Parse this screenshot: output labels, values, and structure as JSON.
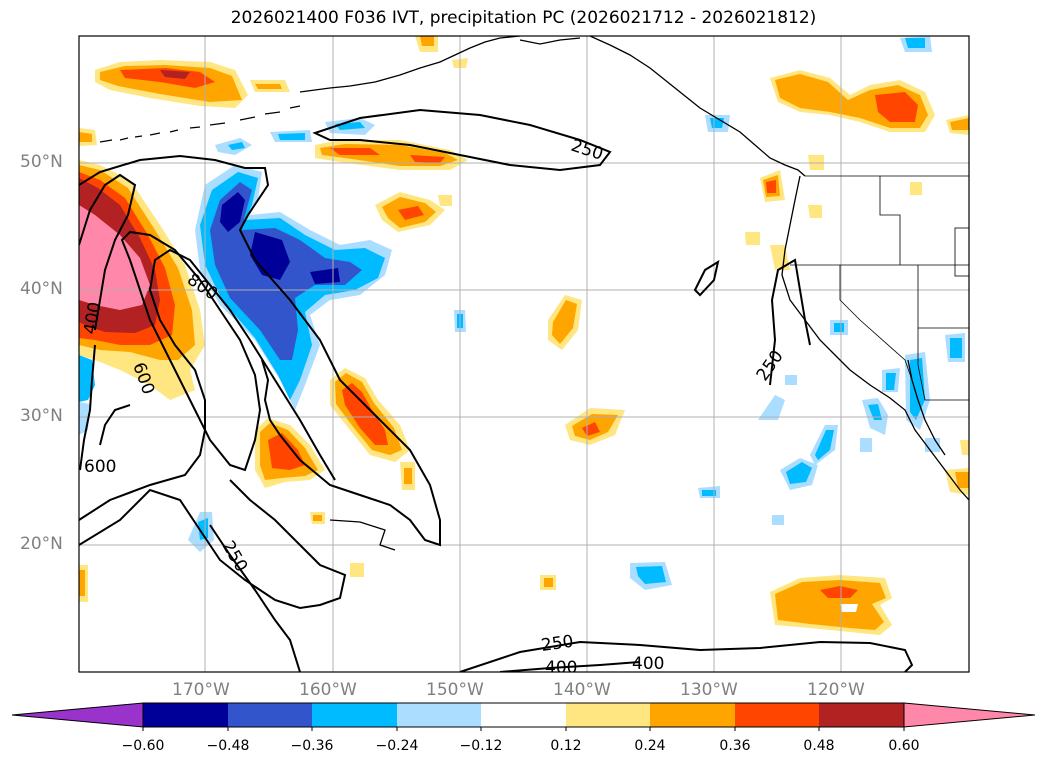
{
  "title": "2026021400 F036 IVT, precipitation PC (2026021712 - 2026021812)",
  "lat_labels": [
    "50°N",
    "40°N",
    "30°N",
    "20°N"
  ],
  "lon_labels": [
    "170°W",
    "160°W",
    "150°W",
    "140°W",
    "130°W",
    "120°W"
  ],
  "colorbar": {
    "ticks": [
      "−0.60",
      "−0.48",
      "−0.36",
      "−0.24",
      "−0.12",
      "0.12",
      "0.24",
      "0.36",
      "0.48",
      "0.60"
    ],
    "colors": [
      "#9933cc",
      "#000099",
      "#3355cc",
      "#00bbff",
      "#aaddff",
      "#ffffff",
      "#ffe680",
      "#ffa500",
      "#ff4500",
      "#b22222",
      "#ff88aa"
    ],
    "extend": "both"
  },
  "contour_labels": [
    "250",
    "800",
    "400",
    "600",
    "600",
    "250",
    "250",
    "250",
    "400",
    "400"
  ],
  "colors": {
    "pink": "#ff88aa",
    "darkred": "#b22222",
    "red": "#ff4500",
    "orange": "#ffa500",
    "yellow": "#ffe680",
    "navy": "#000099",
    "blue": "#3355cc",
    "cyan": "#00bbff",
    "lightblue": "#aaddff"
  }
}
